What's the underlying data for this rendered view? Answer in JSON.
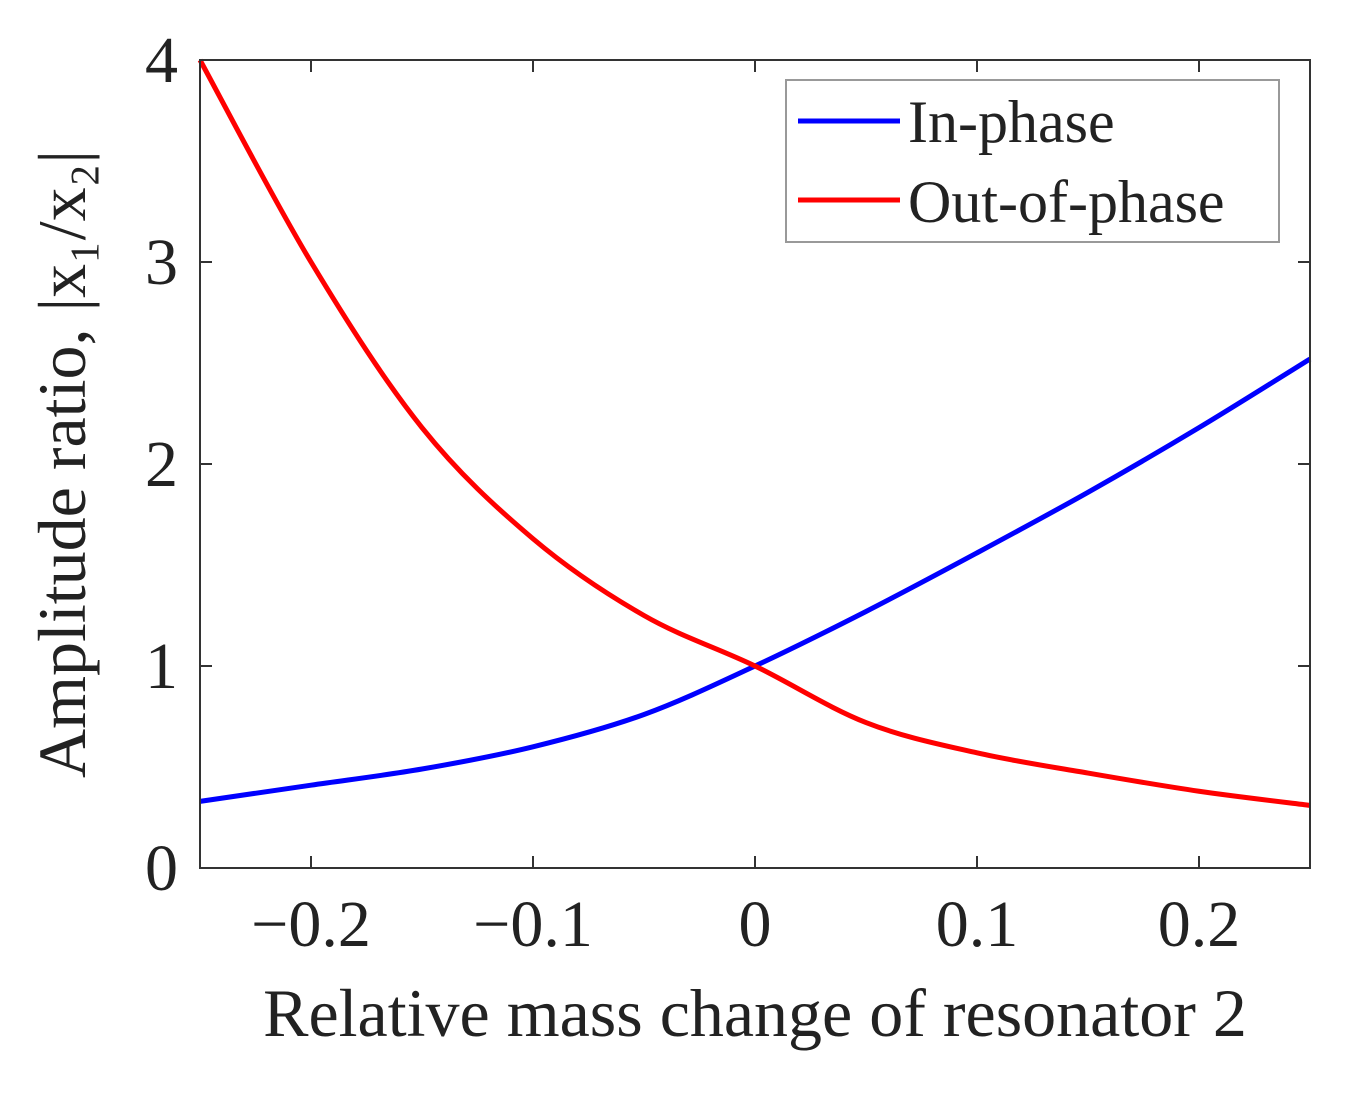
{
  "chart_data": {
    "type": "line",
    "xlabel": "Relative mass change of resonator 2",
    "ylabel": "Amplitude ratio, |x₁/x₂|",
    "xlim": [
      -0.25,
      0.25
    ],
    "ylim": [
      0,
      4
    ],
    "xticks": [
      -0.2,
      -0.1,
      0,
      0.1,
      0.2
    ],
    "xtick_labels": [
      "−0.2",
      "−0.1",
      "0",
      "0.1",
      "0.2"
    ],
    "yticks": [
      0,
      1,
      2,
      3,
      4
    ],
    "ytick_labels": [
      "0",
      "1",
      "2",
      "3",
      "4"
    ],
    "grid": false,
    "legend_position": "top-right",
    "series": [
      {
        "name": "In-phase",
        "color": "#0000ff",
        "x": [
          -0.25,
          -0.2,
          -0.15,
          -0.1,
          -0.05,
          0,
          0.05,
          0.1,
          0.15,
          0.2,
          0.25
        ],
        "y": [
          0.33,
          0.41,
          0.49,
          0.6,
          0.76,
          1.0,
          1.27,
          1.56,
          1.86,
          2.18,
          2.52
        ]
      },
      {
        "name": "Out-of-phase",
        "color": "#ff0000",
        "x": [
          -0.25,
          -0.2,
          -0.15,
          -0.1,
          -0.05,
          0,
          0.05,
          0.1,
          0.15,
          0.2,
          0.25
        ],
        "y": [
          4.0,
          3.0,
          2.18,
          1.63,
          1.25,
          1.0,
          0.72,
          0.57,
          0.47,
          0.38,
          0.31
        ]
      }
    ]
  }
}
